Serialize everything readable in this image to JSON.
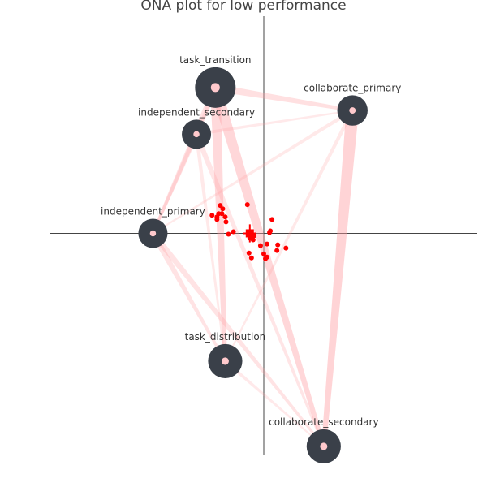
{
  "chart_data": {
    "type": "scatter",
    "title": "ONA plot for low performance",
    "xlabel": "",
    "ylabel": "",
    "grid": false,
    "axes": "zero lines only, no ticks",
    "node_color": "#3a4049",
    "node_center_color": "#ffc9cc",
    "edge_color": "#ff9ea2",
    "point_color": "#ff0000",
    "nodes": [
      {
        "name": "task_transition",
        "x": -0.59,
        "y": 1.78,
        "weight": 1.0
      },
      {
        "name": "collaborate_primary",
        "x": 1.08,
        "y": 1.5,
        "weight": 0.55
      },
      {
        "name": "independent_secondary",
        "x": -0.82,
        "y": 1.21,
        "weight": 0.5
      },
      {
        "name": "independent_primary",
        "x": -1.35,
        "y": 0.0,
        "weight": 0.5
      },
      {
        "name": "task_distribution",
        "x": -0.47,
        "y": -1.56,
        "weight": 0.72
      },
      {
        "name": "collaborate_secondary",
        "x": 0.73,
        "y": -2.6,
        "weight": 0.72
      }
    ],
    "edges": [
      {
        "from": "task_transition",
        "to": "task_distribution",
        "weight": 0.6
      },
      {
        "from": "task_transition",
        "to": "collaborate_secondary",
        "weight": 0.65
      },
      {
        "from": "task_transition",
        "to": "independent_primary",
        "weight": 0.35
      },
      {
        "from": "task_transition",
        "to": "collaborate_primary",
        "weight": 0.4
      },
      {
        "from": "task_transition",
        "to": "independent_secondary",
        "weight": 0.2
      },
      {
        "from": "collaborate_primary",
        "to": "collaborate_secondary",
        "weight": 0.75
      },
      {
        "from": "collaborate_primary",
        "to": "independent_primary",
        "weight": 0.15
      },
      {
        "from": "collaborate_primary",
        "to": "task_distribution",
        "weight": 0.15
      },
      {
        "from": "independent_secondary",
        "to": "collaborate_primary",
        "weight": 0.12
      },
      {
        "from": "independent_secondary",
        "to": "independent_primary",
        "weight": 0.25
      },
      {
        "from": "independent_secondary",
        "to": "task_distribution",
        "weight": 0.15
      },
      {
        "from": "independent_secondary",
        "to": "collaborate_secondary",
        "weight": 0.25
      },
      {
        "from": "independent_primary",
        "to": "task_distribution",
        "weight": 0.3
      },
      {
        "from": "independent_primary",
        "to": "collaborate_secondary",
        "weight": 0.3
      },
      {
        "from": "task_distribution",
        "to": "collaborate_secondary",
        "weight": 0.12
      }
    ],
    "points": [
      {
        "x": -0.53,
        "y": 0.34
      },
      {
        "x": -0.5,
        "y": 0.3
      },
      {
        "x": -0.51,
        "y": 0.24
      },
      {
        "x": -0.55,
        "y": 0.24
      },
      {
        "x": -0.63,
        "y": 0.22
      },
      {
        "x": -0.57,
        "y": 0.2
      },
      {
        "x": -0.47,
        "y": 0.2
      },
      {
        "x": -0.57,
        "y": 0.17
      },
      {
        "x": -0.46,
        "y": 0.14
      },
      {
        "x": -0.37,
        "y": 0.02
      },
      {
        "x": -0.43,
        "y": -0.01
      },
      {
        "x": -0.2,
        "y": 0.35
      },
      {
        "x": 0.1,
        "y": 0.17
      },
      {
        "x": 0.08,
        "y": 0.03
      },
      {
        "x": 0.07,
        "y": 0.01
      },
      {
        "x": -0.12,
        "y": -0.03
      },
      {
        "x": -0.17,
        "y": -0.06
      },
      {
        "x": -0.13,
        "y": -0.08
      },
      {
        "x": -0.04,
        "y": -0.15
      },
      {
        "x": 0.04,
        "y": -0.13
      },
      {
        "x": 0.17,
        "y": -0.14
      },
      {
        "x": 0.16,
        "y": -0.21
      },
      {
        "x": 0.27,
        "y": -0.18
      },
      {
        "x": -0.18,
        "y": -0.24
      },
      {
        "x": 0.0,
        "y": -0.25
      },
      {
        "x": 0.04,
        "y": -0.29
      },
      {
        "x": -0.15,
        "y": -0.3
      },
      {
        "x": 0.02,
        "y": -0.31
      }
    ],
    "mean": {
      "x": -0.17,
      "y": 0.0,
      "ci_x": 0.08,
      "ci_y": 0.11
    },
    "xlim": [
      -2.6,
      2.6
    ],
    "ylim": [
      -2.7,
      2.65
    ]
  }
}
